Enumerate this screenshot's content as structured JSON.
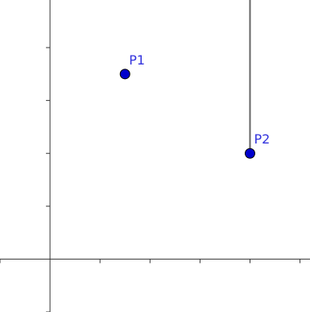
{
  "view": {
    "x_min": -1,
    "x_max": 5.2,
    "y_min": -1,
    "y_max": 4.9,
    "tick_step": 1
  },
  "colors": {
    "axis": "#333333",
    "point_fill": "#0000cc",
    "label": "#3333dd",
    "segment": "#666666"
  },
  "points": [
    {
      "label": "P1",
      "x": 1.5,
      "y": 3.5
    },
    {
      "label": "P2",
      "x": 4.0,
      "y": 2.0
    }
  ],
  "segments": [
    {
      "from": [
        4.0,
        2.0
      ],
      "to": [
        4.0,
        5.0
      ]
    }
  ]
}
